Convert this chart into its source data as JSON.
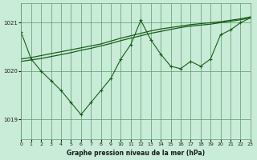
{
  "title": "Graphe pression niveau de la mer (hPa)",
  "background_color": "#c8ecd8",
  "plot_bg_color": "#c8ecd8",
  "grid_color": "#5a9a6a",
  "line_color": "#1a5c1a",
  "xlim": [
    0,
    23
  ],
  "ylim": [
    1018.6,
    1021.4
  ],
  "yticks": [
    1019,
    1020,
    1021
  ],
  "xticks": [
    0,
    1,
    2,
    3,
    4,
    5,
    6,
    7,
    8,
    9,
    10,
    11,
    12,
    13,
    14,
    15,
    16,
    17,
    18,
    19,
    20,
    21,
    22,
    23
  ],
  "series": {
    "jagged": [
      1020.8,
      1020.25,
      1020.0,
      1019.8,
      1019.6,
      1019.35,
      1019.1,
      1019.35,
      1019.6,
      1019.85,
      1020.25,
      1020.55,
      1021.05,
      1020.65,
      1020.35,
      1020.1,
      1020.05,
      1020.2,
      1020.1,
      1020.25,
      1020.75,
      1020.85,
      1021.0,
      1021.1
    ],
    "line2": [
      1020.25,
      1020.28,
      1020.32,
      1020.36,
      1020.4,
      1020.44,
      1020.48,
      1020.52,
      1020.56,
      1020.62,
      1020.68,
      1020.73,
      1020.78,
      1020.83,
      1020.87,
      1020.9,
      1020.93,
      1020.96,
      1020.98,
      1021.0,
      1021.02,
      1021.05,
      1021.08,
      1021.12
    ],
    "line3": [
      1020.2,
      1020.23,
      1020.26,
      1020.3,
      1020.34,
      1020.38,
      1020.43,
      1020.47,
      1020.52,
      1020.57,
      1020.63,
      1020.68,
      1020.73,
      1020.78,
      1020.82,
      1020.86,
      1020.9,
      1020.93,
      1020.95,
      1020.97,
      1021.0,
      1021.03,
      1021.06,
      1021.1
    ]
  }
}
